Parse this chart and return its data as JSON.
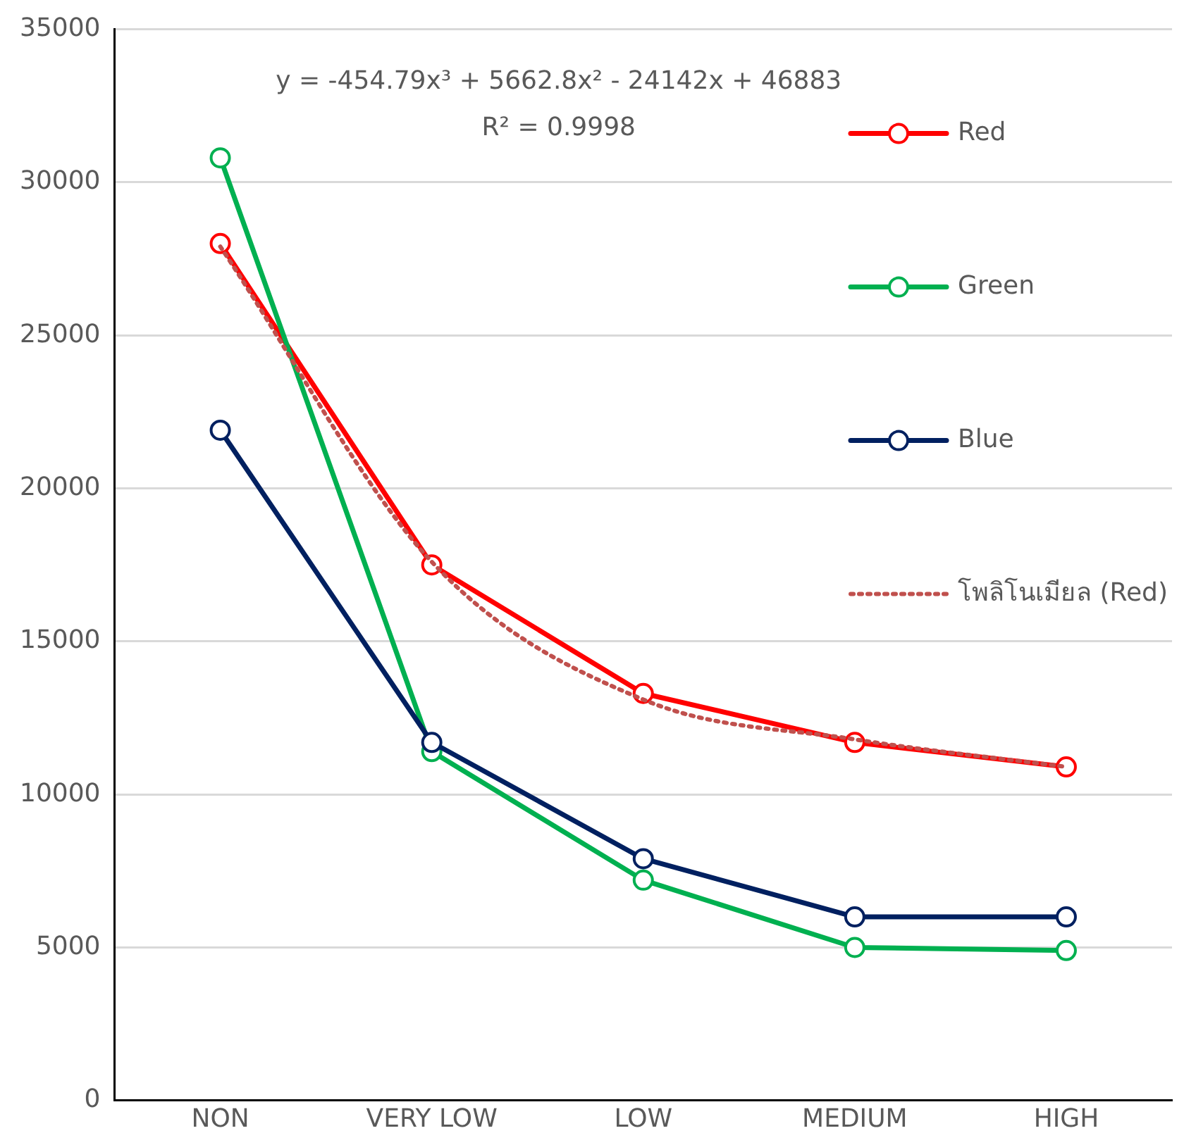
{
  "chart_data": {
    "type": "line",
    "categories": [
      "NON",
      "VERY LOW",
      "LOW",
      "MEDIUM",
      "HIGH"
    ],
    "series": [
      {
        "name": "Red",
        "color": "#ff0000",
        "values": [
          28000,
          17500,
          13300,
          11700,
          10900
        ]
      },
      {
        "name": "Green",
        "color": "#00b050",
        "values": [
          30800,
          11400,
          7200,
          5000,
          4900
        ]
      },
      {
        "name": "Blue",
        "color": "#002060",
        "values": [
          21900,
          11700,
          7900,
          6000,
          6000
        ]
      },
      {
        "name": "โพลิโนเมียล (Red)",
        "color": "#c0504d",
        "type": "line",
        "marker": "none",
        "line_style": "dotted",
        "x": [
          "NON",
          "VERY LOW",
          "LOW",
          "MEDIUM",
          "HIGH"
        ],
        "values": [
          27900,
          17600,
          13100,
          11800,
          10900
        ]
      }
    ],
    "ylim": [
      0,
      35000
    ],
    "yticks": [
      0,
      5000,
      10000,
      15000,
      20000,
      25000,
      30000,
      35000
    ],
    "grid": "y",
    "legend": "right",
    "marker": "circle",
    "line_style": "solid",
    "annotations": [
      "y = -454.79x³ + 5662.8x² - 24142x + 46883",
      "R² = 0.9998"
    ]
  }
}
